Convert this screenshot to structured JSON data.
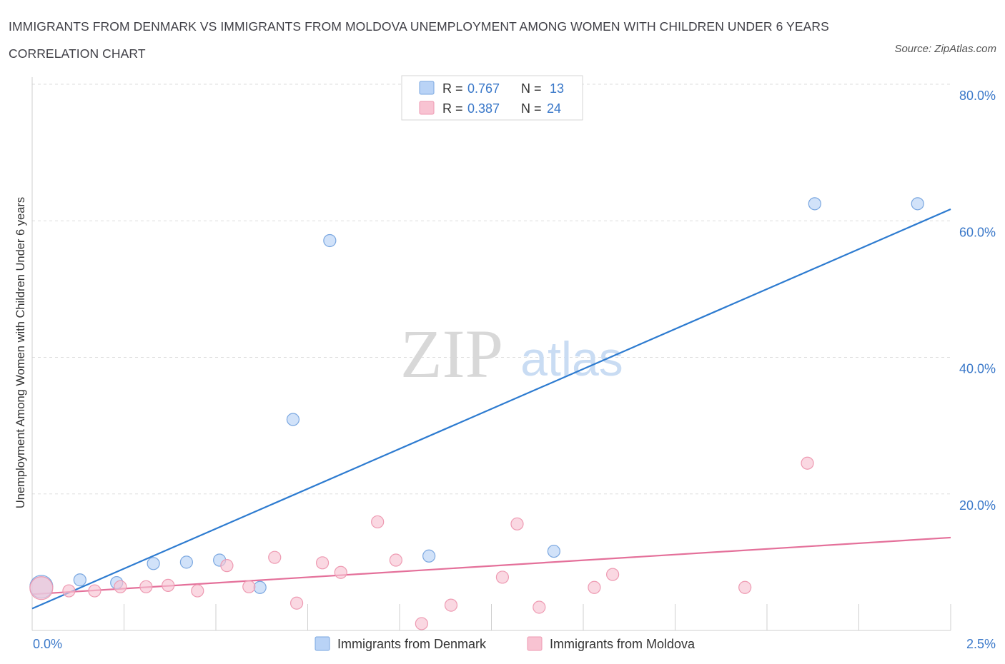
{
  "title": "IMMIGRANTS FROM DENMARK VS IMMIGRANTS FROM MOLDOVA UNEMPLOYMENT AMONG WOMEN WITH CHILDREN UNDER 6 YEARS CORRELATION CHART",
  "source": "Source: ZipAtlas.com",
  "watermark": {
    "zip": "ZIP",
    "atlas": "atlas"
  },
  "stats_legend": [
    {
      "r_label": "R = ",
      "r_value": "0.767",
      "n_label": "N = ",
      "n_value": "13"
    },
    {
      "r_label": "R = ",
      "r_value": "0.387",
      "n_label": "N = ",
      "n_value": "24"
    }
  ],
  "colors": {
    "denmark_fill": "#b9d3f6",
    "denmark_stroke": "#7aa7e0",
    "denmark_line": "#2d7bd0",
    "moldova_fill": "#f8c3d2",
    "moldova_stroke": "#ee9ab2",
    "moldova_line": "#e4709a",
    "value_text": "#3a78c9",
    "grid": "#dddddd"
  },
  "chart_data": {
    "type": "scatter",
    "title": "IMMIGRANTS FROM DENMARK VS IMMIGRANTS FROM MOLDOVA UNEMPLOYMENT AMONG WOMEN WITH CHILDREN UNDER 6 YEARS CORRELATION CHART",
    "xlabel": "",
    "ylabel": "Unemployment Among Women with Children Under 6 years",
    "xlim": [
      0,
      2.5
    ],
    "ylim": [
      0,
      80
    ],
    "x_tick_labels": [
      "0.0%",
      "2.5%"
    ],
    "y_tick_labels": [
      "20.0%",
      "40.0%",
      "60.0%",
      "80.0%"
    ],
    "y_ticks": [
      20,
      40,
      60,
      80
    ],
    "series": [
      {
        "name": "Immigrants from Denmark",
        "points": [
          {
            "x": 0.025,
            "y": 6.4,
            "size": "large"
          },
          {
            "x": 0.13,
            "y": 7.4
          },
          {
            "x": 0.23,
            "y": 7.0
          },
          {
            "x": 0.33,
            "y": 9.8
          },
          {
            "x": 0.42,
            "y": 10.0
          },
          {
            "x": 0.51,
            "y": 10.3
          },
          {
            "x": 0.62,
            "y": 6.3
          },
          {
            "x": 0.71,
            "y": 30.9
          },
          {
            "x": 0.81,
            "y": 57.1
          },
          {
            "x": 1.08,
            "y": 10.9
          },
          {
            "x": 1.42,
            "y": 11.6
          },
          {
            "x": 2.13,
            "y": 62.5
          },
          {
            "x": 2.41,
            "y": 62.5
          }
        ],
        "trend": {
          "x": [
            0.0,
            2.5
          ],
          "y": [
            3.2,
            61.7
          ]
        }
      },
      {
        "name": "Immigrants from Moldova",
        "points": [
          {
            "x": 0.025,
            "y": 6.2,
            "size": "large"
          },
          {
            "x": 0.1,
            "y": 5.8
          },
          {
            "x": 0.17,
            "y": 5.8
          },
          {
            "x": 0.24,
            "y": 6.4
          },
          {
            "x": 0.31,
            "y": 6.4
          },
          {
            "x": 0.37,
            "y": 6.6
          },
          {
            "x": 0.45,
            "y": 5.8
          },
          {
            "x": 0.53,
            "y": 9.5
          },
          {
            "x": 0.59,
            "y": 6.4
          },
          {
            "x": 0.66,
            "y": 10.7
          },
          {
            "x": 0.72,
            "y": 4.0
          },
          {
            "x": 0.79,
            "y": 9.9
          },
          {
            "x": 0.84,
            "y": 8.5
          },
          {
            "x": 0.94,
            "y": 15.9
          },
          {
            "x": 0.99,
            "y": 10.3
          },
          {
            "x": 1.06,
            "y": 1.0
          },
          {
            "x": 1.14,
            "y": 3.7
          },
          {
            "x": 1.28,
            "y": 7.8
          },
          {
            "x": 1.32,
            "y": 15.6
          },
          {
            "x": 1.38,
            "y": 3.4
          },
          {
            "x": 1.53,
            "y": 6.3
          },
          {
            "x": 1.58,
            "y": 8.2
          },
          {
            "x": 1.94,
            "y": 6.3
          },
          {
            "x": 2.11,
            "y": 24.5
          }
        ],
        "trend": {
          "x": [
            0.0,
            2.5
          ],
          "y": [
            5.3,
            13.6
          ]
        }
      }
    ]
  },
  "bottom_legend": [
    "Immigrants from Denmark",
    "Immigrants from Moldova"
  ]
}
